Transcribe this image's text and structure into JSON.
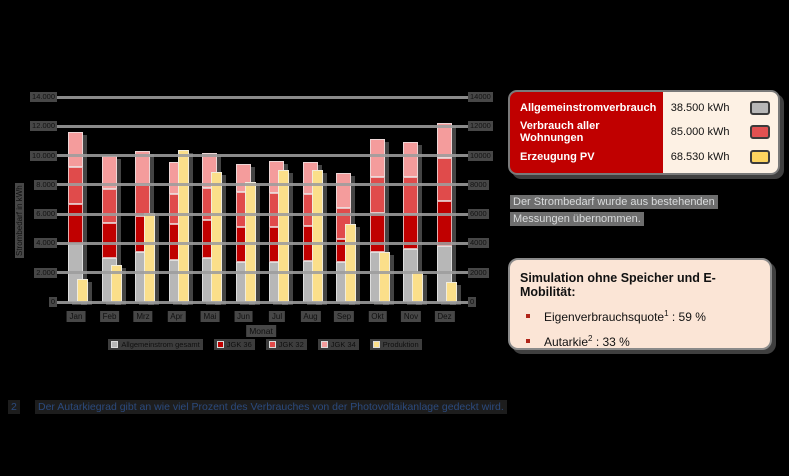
{
  "chart_data": {
    "type": "bar",
    "title": "",
    "xlabel": "Monat",
    "ylabel": "Strombedarf in kWh",
    "ylim": [
      0,
      14000
    ],
    "ytick_step": 2000,
    "yticks_left": [
      "0",
      "2.000",
      "4.000",
      "6.000",
      "8.000",
      "10.000",
      "12.000",
      "14.000"
    ],
    "yticks_right": [
      "0",
      "2000",
      "4000",
      "6000",
      "8000",
      "10000",
      "12000",
      "14000"
    ],
    "grid": "horizontal",
    "legend_position": "bottom",
    "categories": [
      "Jan",
      "Feb",
      "Mrz",
      "Apr",
      "Mai",
      "Jun",
      "Jul",
      "Aug",
      "Sep",
      "Okt",
      "Nov",
      "Dez"
    ],
    "stacked_series": [
      {
        "name": "Allgemeinstrom gesamt",
        "color": "#b7b7b7",
        "values": [
          3950,
          3000,
          3400,
          2900,
          3000,
          2700,
          2700,
          2800,
          2700,
          3400,
          3600,
          3850
        ]
      },
      {
        "name": "JGK 36",
        "color": "#c00000",
        "values": [
          2750,
          2400,
          2500,
          2400,
          2600,
          2400,
          2400,
          2400,
          1600,
          2650,
          2400,
          3050
        ]
      },
      {
        "name": "JGK 32",
        "color": "#e04b4b",
        "values": [
          2500,
          2300,
          2100,
          2100,
          2200,
          2400,
          2350,
          2200,
          2100,
          2500,
          2550,
          2900
        ]
      },
      {
        "name": "JGK 34",
        "color": "#f49c9c",
        "values": [
          2400,
          2300,
          2300,
          2150,
          2380,
          1950,
          2150,
          2150,
          2400,
          2600,
          2350,
          2400
        ]
      }
    ],
    "bar_series": {
      "name": "Produktion",
      "color": "#fbdf8a",
      "values": [
        1600,
        2500,
        6100,
        10350,
        8900,
        8200,
        9000,
        9000,
        5300,
        3400,
        2050,
        1400
      ]
    }
  },
  "summary_table": {
    "rows": [
      {
        "label": "Allgemeinstromverbrauch",
        "value": "38.500 kWh",
        "swatch": "#b7b7b7"
      },
      {
        "label": "Verbrauch aller Wohnungen",
        "value": "85.000 kWh",
        "swatch": "#e15151"
      },
      {
        "label": "Erzeugung PV",
        "value": "68.530 kWh",
        "swatch": "#fcd45f"
      }
    ]
  },
  "note": {
    "text": "Der Strombedarf wurde aus bestehenden Messungen übernommen."
  },
  "simulation": {
    "title": "Simulation ohne Speicher und E-Mobilität:",
    "bullets": [
      {
        "name": "Eigenverbrauchsquote",
        "sup": "1",
        "rest": " : 59 %"
      },
      {
        "name": "Autarkie",
        "sup": "2",
        "rest": " : 33 %"
      }
    ]
  },
  "footnote": {
    "marker": "2",
    "text": "Der Autarkiegrad gibt an wie viel Prozent des Verbrauches von der Photovoltaikanlage gedeckt wird."
  },
  "colors": {
    "background": "#000000",
    "accent_red": "#c00000",
    "table_cream": "#fdf1e4",
    "sim_peach": "#fbe5d6",
    "footnote_blue": "#2b4a7d"
  }
}
